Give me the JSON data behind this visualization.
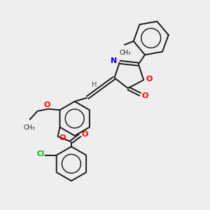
{
  "bg_color": "#eeeeee",
  "bond_color": "#1a1a1a",
  "N_color": "#0000ff",
  "O_color": "#ff0000",
  "Cl_color": "#00bb00",
  "H_color": "#555555",
  "line_width": 1.4,
  "figsize": [
    3.0,
    3.0
  ],
  "dpi": 100,
  "xlim": [
    0,
    10
  ],
  "ylim": [
    0,
    10
  ]
}
